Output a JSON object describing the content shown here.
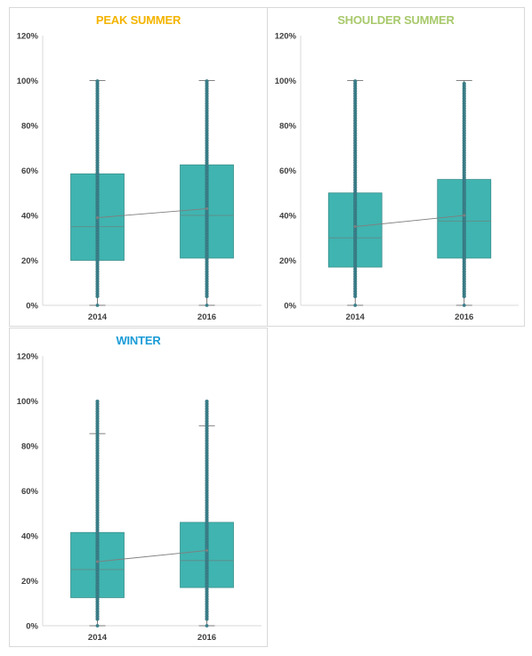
{
  "chart_data": [
    {
      "type": "box",
      "title": "PEAK SUMMER",
      "title_color": "#F4B400",
      "categories": [
        "2014",
        "2016"
      ],
      "y_ticks": [
        "0%",
        "20%",
        "40%",
        "60%",
        "80%",
        "100%",
        "120%"
      ],
      "ylim": [
        0,
        1.2
      ],
      "grid": false,
      "box_color": "#40B4B0",
      "point_color": "#3B7F8A",
      "boxes": [
        {
          "q1": 0.2,
          "median": 0.35,
          "q3": 0.585,
          "mean": 0.39,
          "whisker_low": 0.0,
          "whisker_high": 1.0,
          "points_low": 0.04,
          "points_high": 1.0
        },
        {
          "q1": 0.21,
          "median": 0.4,
          "q3": 0.625,
          "mean": 0.43,
          "whisker_low": 0.0,
          "whisker_high": 1.0,
          "points_low": 0.04,
          "points_high": 1.0
        }
      ]
    },
    {
      "type": "box",
      "title": "SHOULDER SUMMER",
      "title_color": "#A8C96B",
      "categories": [
        "2014",
        "2016"
      ],
      "y_ticks": [
        "0%",
        "20%",
        "40%",
        "60%",
        "80%",
        "100%",
        "120%"
      ],
      "ylim": [
        0,
        1.2
      ],
      "grid": false,
      "box_color": "#40B4B0",
      "point_color": "#3B7F8A",
      "boxes": [
        {
          "q1": 0.17,
          "median": 0.3,
          "q3": 0.5,
          "mean": 0.35,
          "whisker_low": 0.0,
          "whisker_high": 1.0,
          "points_low": 0.04,
          "points_high": 1.0
        },
        {
          "q1": 0.21,
          "median": 0.375,
          "q3": 0.56,
          "mean": 0.4,
          "whisker_low": 0.0,
          "whisker_high": 1.0,
          "points_low": 0.04,
          "points_high": 0.99
        }
      ]
    },
    {
      "type": "box",
      "title": "WINTER",
      "title_color": "#1A9BD7",
      "categories": [
        "2014",
        "2016"
      ],
      "y_ticks": [
        "0%",
        "20%",
        "40%",
        "60%",
        "80%",
        "100%",
        "120%"
      ],
      "ylim": [
        0,
        1.2
      ],
      "grid": false,
      "box_color": "#40B4B0",
      "point_color": "#3B7F8A",
      "boxes": [
        {
          "q1": 0.125,
          "median": 0.25,
          "q3": 0.415,
          "mean": 0.285,
          "whisker_low": 0.0,
          "whisker_high": 0.855,
          "points_low": 0.03,
          "points_high": 1.0
        },
        {
          "q1": 0.17,
          "median": 0.29,
          "q3": 0.46,
          "mean": 0.335,
          "whisker_low": 0.0,
          "whisker_high": 0.89,
          "points_low": 0.03,
          "points_high": 1.0
        }
      ]
    }
  ]
}
